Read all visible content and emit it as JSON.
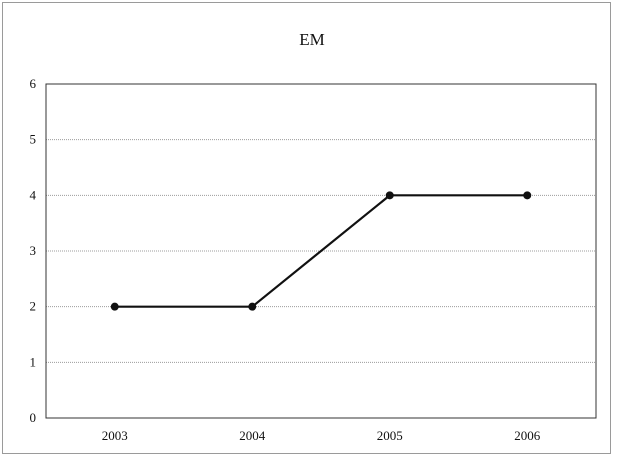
{
  "chart_data": {
    "type": "line",
    "title": "EM",
    "xlabel": "",
    "ylabel": "",
    "categories": [
      "2003",
      "2004",
      "2005",
      "2006"
    ],
    "series": [
      {
        "values": [
          2,
          2,
          4,
          4
        ]
      }
    ],
    "ylim": [
      0,
      6
    ],
    "yticks": [
      0,
      1,
      2,
      3,
      4,
      5,
      6
    ],
    "grid": true,
    "legend": "none",
    "colors": {
      "line": "#111111",
      "grid": "#9c9c9c",
      "frame": "#333333"
    }
  }
}
